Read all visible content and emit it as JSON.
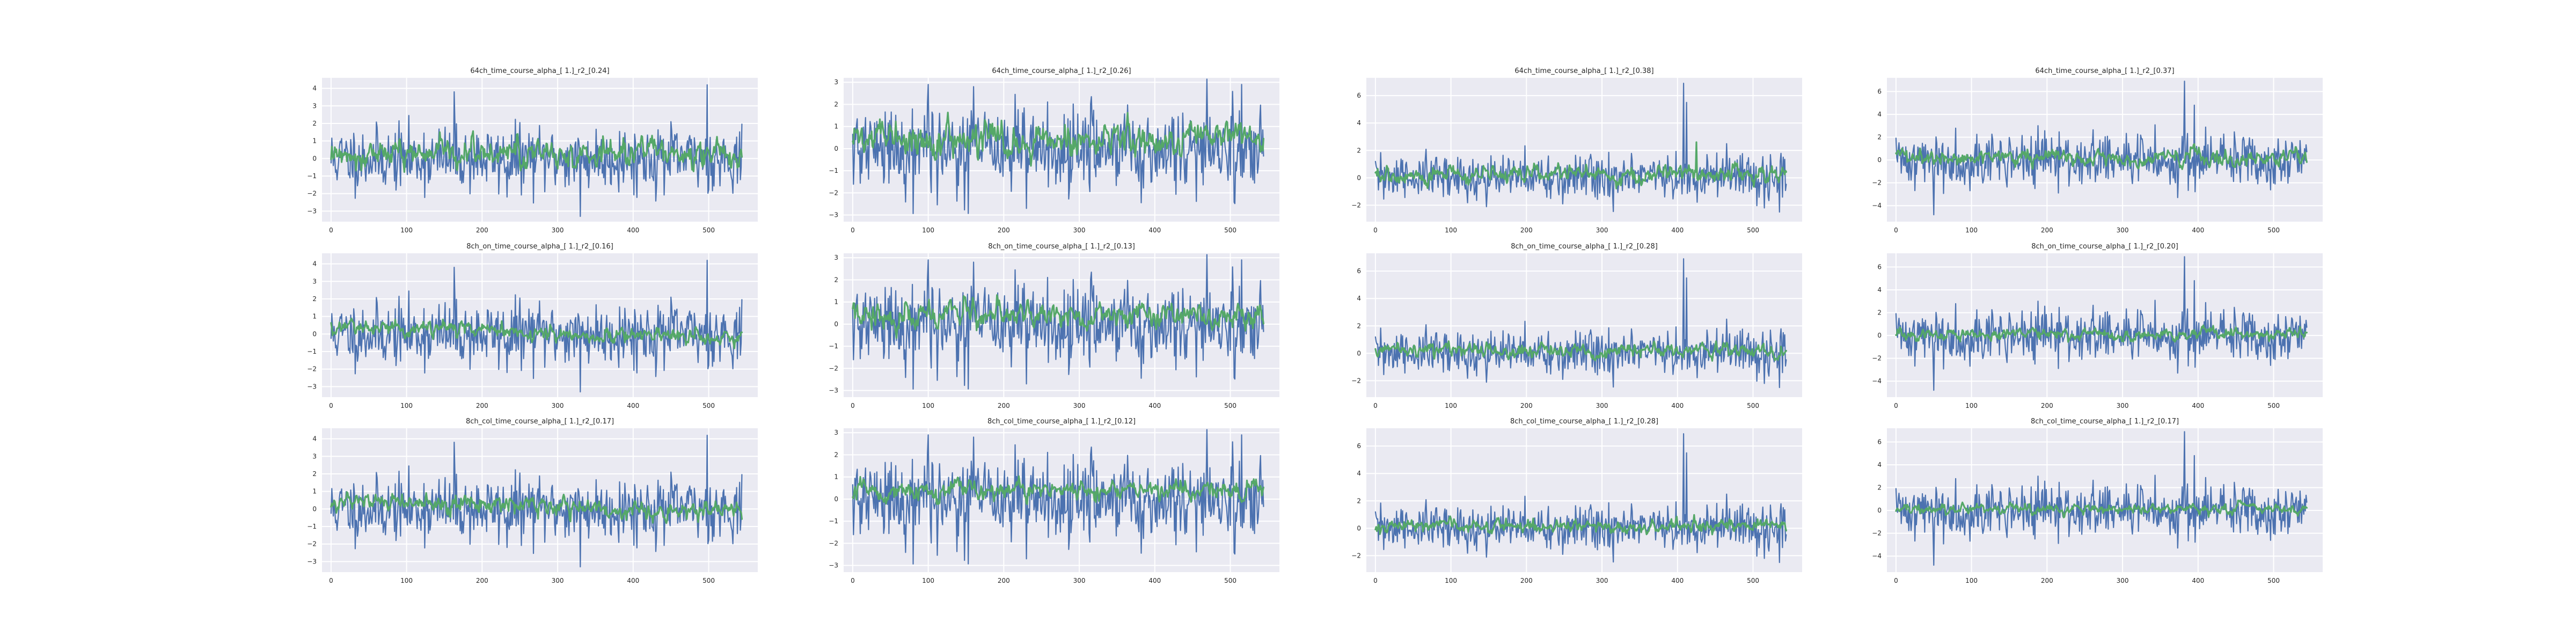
{
  "figure": {
    "background": "#ffffff"
  },
  "colors": {
    "plot_background": "#eaeaf2",
    "grid": "#ffffff",
    "signal": "#4c72b0",
    "smoothed": "#55a868",
    "text": "#262626"
  },
  "chart_data": [
    {
      "type": "line",
      "title": "64ch_time_course_alpha_[ 1.]_r2_[0.24]",
      "xlim": [
        -12,
        565
      ],
      "ylim": [
        -3.6,
        4.6
      ],
      "xticks": [
        0,
        100,
        200,
        300,
        400,
        500
      ],
      "yticks": [
        -3,
        -2,
        -1,
        0,
        1,
        2,
        3,
        4
      ],
      "grid": true,
      "series": [
        {
          "color": "#4c72b0",
          "amp": 0.9,
          "spikes": [
            [
              163,
              3.8
            ],
            [
              233,
              -2.2
            ],
            [
              330,
              -3.3
            ],
            [
              498,
              4.2
            ]
          ],
          "seed": 11,
          "n": 545
        },
        {
          "color": "#55a868",
          "amp": 0.55,
          "level": 0.3,
          "seed": 12,
          "n": 545
        }
      ]
    },
    {
      "type": "line",
      "title": "64ch_time_course_alpha_[ 1.]_r2_[0.26]",
      "xlim": [
        -12,
        565
      ],
      "ylim": [
        -3.3,
        3.2
      ],
      "xticks": [
        0,
        100,
        200,
        300,
        400,
        500
      ],
      "yticks": [
        -3,
        -2,
        -1,
        0,
        1,
        2,
        3
      ],
      "grid": true,
      "series": [
        {
          "color": "#4c72b0",
          "amp": 0.95,
          "spikes": [
            [
              100,
              2.9
            ],
            [
              160,
              2.8
            ],
            [
              230,
              -2.7
            ],
            [
              515,
              2.9
            ]
          ],
          "seed": 21,
          "n": 545
        },
        {
          "color": "#55a868",
          "amp": 0.5,
          "level": 0.4,
          "seed": 22,
          "n": 545
        }
      ]
    },
    {
      "type": "line",
      "title": "64ch_time_course_alpha_[ 1.]_r2_[0.38]",
      "xlim": [
        -12,
        565
      ],
      "ylim": [
        -3.2,
        7.3
      ],
      "xticks": [
        0,
        100,
        200,
        300,
        400,
        500
      ],
      "yticks": [
        -2,
        0,
        2,
        4,
        6
      ],
      "grid": true,
      "series": [
        {
          "color": "#4c72b0",
          "amp": 0.85,
          "spikes": [
            [
              408,
              6.9
            ],
            [
              412,
              5.5
            ],
            [
              535,
              -2.5
            ]
          ],
          "seed": 31,
          "n": 545
        },
        {
          "color": "#55a868",
          "amp": 0.45,
          "level": 0.2,
          "seed": 32,
          "n": 545,
          "spikes": [
            [
              425,
              2.6
            ]
          ]
        }
      ]
    },
    {
      "type": "line",
      "title": "64ch_time_course_alpha_[ 1.]_r2_[0.37]",
      "xlim": [
        -12,
        565
      ],
      "ylim": [
        -5.4,
        7.2
      ],
      "xticks": [
        0,
        100,
        200,
        300,
        400,
        500
      ],
      "yticks": [
        -4,
        -2,
        0,
        2,
        4,
        6
      ],
      "grid": true,
      "series": [
        {
          "color": "#4c72b0",
          "amp": 1.15,
          "spikes": [
            [
              382,
              6.9
            ],
            [
              50,
              -4.8
            ],
            [
              395,
              4.8
            ]
          ],
          "seed": 41,
          "n": 545
        },
        {
          "color": "#55a868",
          "amp": 0.5,
          "level": 0.2,
          "seed": 42,
          "n": 545
        }
      ]
    },
    {
      "type": "line",
      "title": "8ch_on_time_course_alpha_[ 1.]_r2_[0.16]",
      "xlim": [
        -12,
        565
      ],
      "ylim": [
        -3.6,
        4.6
      ],
      "xticks": [
        0,
        100,
        200,
        300,
        400,
        500
      ],
      "yticks": [
        -3,
        -2,
        -1,
        0,
        1,
        2,
        3,
        4
      ],
      "grid": true,
      "series": [
        {
          "color": "#4c72b0",
          "amp": 0.9,
          "spikes": [
            [
              163,
              3.8
            ],
            [
              233,
              -2.2
            ],
            [
              330,
              -3.3
            ],
            [
              498,
              4.2
            ]
          ],
          "seed": 11,
          "n": 545
        },
        {
          "color": "#55a868",
          "amp": 0.3,
          "level": 0.35,
          "seed": 52,
          "n": 545,
          "drift": -0.6
        }
      ]
    },
    {
      "type": "line",
      "title": "8ch_on_time_course_alpha_[ 1.]_r2_[0.13]",
      "xlim": [
        -12,
        565
      ],
      "ylim": [
        -3.3,
        3.2
      ],
      "xticks": [
        0,
        100,
        200,
        300,
        400,
        500
      ],
      "yticks": [
        -3,
        -2,
        -1,
        0,
        1,
        2,
        3
      ],
      "grid": true,
      "series": [
        {
          "color": "#4c72b0",
          "amp": 0.95,
          "spikes": [
            [
              100,
              2.9
            ],
            [
              160,
              2.8
            ],
            [
              230,
              -2.7
            ],
            [
              515,
              2.9
            ]
          ],
          "seed": 21,
          "n": 545
        },
        {
          "color": "#55a868",
          "amp": 0.4,
          "level": 0.4,
          "seed": 62,
          "n": 545
        }
      ]
    },
    {
      "type": "line",
      "title": "8ch_on_time_course_alpha_[ 1.]_r2_[0.28]",
      "xlim": [
        -12,
        565
      ],
      "ylim": [
        -3.2,
        7.3
      ],
      "xticks": [
        0,
        100,
        200,
        300,
        400,
        500
      ],
      "yticks": [
        -2,
        0,
        2,
        4,
        6
      ],
      "grid": true,
      "series": [
        {
          "color": "#4c72b0",
          "amp": 0.85,
          "spikes": [
            [
              408,
              6.9
            ],
            [
              412,
              5.5
            ],
            [
              535,
              -2.5
            ]
          ],
          "seed": 31,
          "n": 545
        },
        {
          "color": "#55a868",
          "amp": 0.35,
          "level": 0.2,
          "seed": 72,
          "n": 545
        }
      ]
    },
    {
      "type": "line",
      "title": "8ch_on_time_course_alpha_[ 1.]_r2_[0.20]",
      "xlim": [
        -12,
        565
      ],
      "ylim": [
        -5.4,
        7.2
      ],
      "xticks": [
        0,
        100,
        200,
        300,
        400,
        500
      ],
      "yticks": [
        -4,
        -2,
        0,
        2,
        4,
        6
      ],
      "grid": true,
      "series": [
        {
          "color": "#4c72b0",
          "amp": 1.15,
          "spikes": [
            [
              382,
              6.9
            ],
            [
              50,
              -4.8
            ],
            [
              395,
              4.8
            ]
          ],
          "seed": 41,
          "n": 545
        },
        {
          "color": "#55a868",
          "amp": 0.35,
          "level": 0.1,
          "seed": 82,
          "n": 545
        }
      ]
    },
    {
      "type": "line",
      "title": "8ch_col_time_course_alpha_[ 1.]_r2_[0.17]",
      "xlim": [
        -12,
        565
      ],
      "ylim": [
        -3.6,
        4.6
      ],
      "xticks": [
        0,
        100,
        200,
        300,
        400,
        500
      ],
      "yticks": [
        -3,
        -2,
        -1,
        0,
        1,
        2,
        3,
        4
      ],
      "grid": true,
      "series": [
        {
          "color": "#4c72b0",
          "amp": 0.9,
          "spikes": [
            [
              163,
              3.8
            ],
            [
              233,
              -2.2
            ],
            [
              330,
              -3.3
            ],
            [
              498,
              4.2
            ]
          ],
          "seed": 11,
          "n": 545
        },
        {
          "color": "#55a868",
          "amp": 0.35,
          "level": 0.35,
          "seed": 92,
          "n": 545,
          "drift": -0.5
        }
      ]
    },
    {
      "type": "line",
      "title": "8ch_col_time_course_alpha_[ 1.]_r2_[0.12]",
      "xlim": [
        -12,
        565
      ],
      "ylim": [
        -3.3,
        3.2
      ],
      "xticks": [
        0,
        100,
        200,
        300,
        400,
        500
      ],
      "yticks": [
        -3,
        -2,
        -1,
        0,
        1,
        2,
        3
      ],
      "grid": true,
      "series": [
        {
          "color": "#4c72b0",
          "amp": 0.95,
          "spikes": [
            [
              100,
              2.9
            ],
            [
              160,
              2.8
            ],
            [
              230,
              -2.7
            ],
            [
              515,
              2.9
            ]
          ],
          "seed": 21,
          "n": 545
        },
        {
          "color": "#55a868",
          "amp": 0.3,
          "level": 0.35,
          "seed": 102,
          "n": 545
        }
      ]
    },
    {
      "type": "line",
      "title": "8ch_col_time_course_alpha_[ 1.]_r2_[0.28]",
      "xlim": [
        -12,
        565
      ],
      "ylim": [
        -3.2,
        7.3
      ],
      "xticks": [
        0,
        100,
        200,
        300,
        400,
        500
      ],
      "yticks": [
        -2,
        0,
        2,
        4,
        6
      ],
      "grid": true,
      "series": [
        {
          "color": "#4c72b0",
          "amp": 0.85,
          "spikes": [
            [
              408,
              6.9
            ],
            [
              412,
              5.5
            ],
            [
              535,
              -2.5
            ]
          ],
          "seed": 31,
          "n": 545
        },
        {
          "color": "#55a868",
          "amp": 0.35,
          "level": 0.2,
          "seed": 112,
          "n": 545
        }
      ]
    },
    {
      "type": "line",
      "title": "8ch_col_time_course_alpha_[ 1.]_r2_[0.17]",
      "xlim": [
        -12,
        565
      ],
      "ylim": [
        -5.4,
        7.2
      ],
      "xticks": [
        0,
        100,
        200,
        300,
        400,
        500
      ],
      "yticks": [
        -4,
        -2,
        0,
        2,
        4,
        6
      ],
      "grid": true,
      "series": [
        {
          "color": "#4c72b0",
          "amp": 1.15,
          "spikes": [
            [
              382,
              6.9
            ],
            [
              50,
              -4.8
            ],
            [
              395,
              4.8
            ]
          ],
          "seed": 41,
          "n": 545
        },
        {
          "color": "#55a868",
          "amp": 0.3,
          "level": 0.1,
          "seed": 122,
          "n": 545
        }
      ]
    }
  ]
}
